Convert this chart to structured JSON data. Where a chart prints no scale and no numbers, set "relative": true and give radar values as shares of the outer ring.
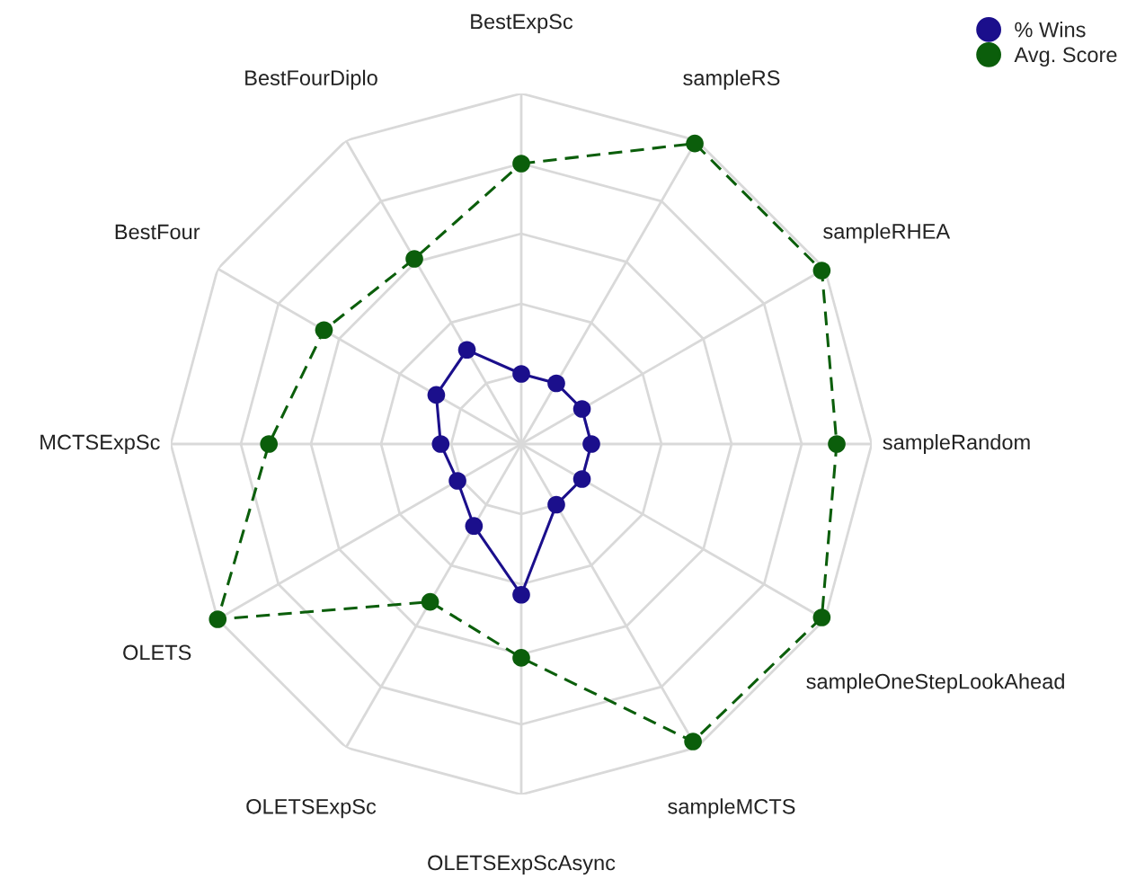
{
  "chart_data": {
    "type": "radar",
    "relative": true,
    "categories": [
      "BestExpSc",
      "sampleRS",
      "sampleRHEA",
      "sampleRandom",
      "sampleOneStepLookAhead",
      "sampleMCTS",
      "OLETSExpScAsync",
      "OLETSExpSc",
      "OLETS",
      "MCTSExpSc",
      "BestFour",
      "BestFourDiplo"
    ],
    "series": [
      {
        "name": "% Wins",
        "color": "#1b0f8c",
        "line_style": "solid",
        "values": [
          0.2,
          0.2,
          0.2,
          0.2,
          0.2,
          0.2,
          0.43,
          0.27,
          0.21,
          0.23,
          0.28,
          0.31
        ]
      },
      {
        "name": "Avg. Score",
        "color": "#0b5e0b",
        "line_style": "dashed",
        "values": [
          0.8,
          0.99,
          0.99,
          0.9,
          0.99,
          0.98,
          0.61,
          0.52,
          1.0,
          0.72,
          0.65,
          0.61
        ]
      }
    ],
    "marker": "circle",
    "grid": true,
    "legend": "top right"
  }
}
